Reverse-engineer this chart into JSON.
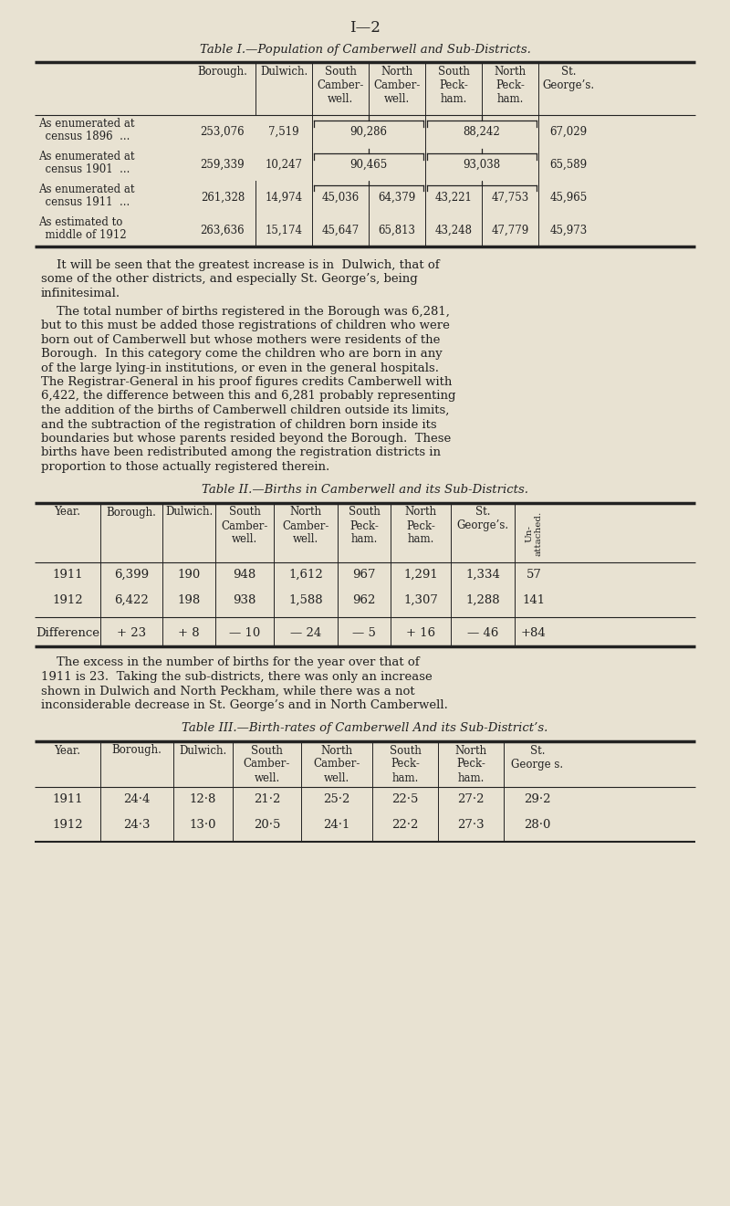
{
  "page_title": "I—2",
  "bg_color": "#e8e2d2",
  "text_color": "#222222",
  "table1_title": "Table I.—Population of Camberwell and Sub-Districts.",
  "table1_col_widths": [
    170,
    72,
    62,
    62,
    62,
    62,
    62,
    66
  ],
  "table1_headers": [
    "",
    "Borough.",
    "Dulwich.",
    "South\nCamber-\nwell.",
    "North\nCamber-\nwell.",
    "South\nPeck-\nham.",
    "North\nPeck-\nham.",
    "St.\nGeorge’s."
  ],
  "table1_rows": [
    [
      "As enumerated at\n  census 1896  ...",
      "253,076",
      "7,519",
      "90,286",
      "",
      "88,242",
      "",
      "67,029"
    ],
    [
      "As enumerated at\n  census 1901  ...",
      "259,339",
      "10,247",
      "90,465",
      "",
      "93,038",
      "",
      "65,589"
    ],
    [
      "As enumerated at\n  census 1911  ...",
      "261,328",
      "14,974",
      "45,036",
      "64,379",
      "43,221",
      "47,753",
      "45,965"
    ],
    [
      "As estimated to\n  middle of 1912",
      "263,636",
      "15,174",
      "45,647",
      "65,813",
      "43,248",
      "47,779",
      "45,973"
    ]
  ],
  "paragraph1": "    It will be seen that the greatest increase is in  Dulwich, that of\nsome of the other districts, and especially St. George’s, being\ninfinitesimal.",
  "paragraph2": "    The total number of births registered in the Borough was 6,281,\nbut to this must be added those registrations of children who were\nborn out of Camberwell but whose mothers were residents of the\nBorough.  In this category come the children who are born in any\nof the large lying-in institutions, or even in the general hospitals.\nThe Registrar-General in his proof figures credits Camberwell with\n6,422, the difference between this and 6,281 probably representing\nthe addition of the births of Camberwell children outside its limits,\nand the subtraction of the registration of children born inside its\nboundaries but whose parents resided beyond the Borough.  These\nbirths have been redistributed among the registration districts in\nproportion to those actually registered therein.",
  "table2_title": "Table II.—Births in Camberwell and its Sub-Districts.",
  "table2_col_widths": [
    72,
    68,
    58,
    64,
    70,
    58,
    66,
    70,
    42
  ],
  "table2_headers": [
    "Year.",
    "Borough.",
    "Dulwich.",
    "South\nCamber-\nwell.",
    "North\nCamber-\nwell.",
    "South\nPeck-\nham.",
    "North\nPeck-\nham.",
    "St.\nGeorge’s.",
    "Un-\nattached."
  ],
  "table2_rows": [
    [
      "1911",
      "6,399",
      "190",
      "948",
      "1,612",
      "967",
      "1,291",
      "1,334",
      "57"
    ],
    [
      "1912",
      "6,422",
      "198",
      "938",
      "1,588",
      "962",
      "1,307",
      "1,288",
      "141"
    ],
    [
      "Difference",
      "+ 23",
      "+ 8",
      "— 10",
      "— 24",
      "— 5",
      "+ 16",
      "— 46",
      "+84"
    ]
  ],
  "paragraph3": "    The excess in the number of births for the year over that of\n1911 is 23.  Taking the sub-districts, there was only an increase\nshown in Dulwich and North Peckham, while there was a not\ninconsiderable decrease in St. George’s and in North Camberwell.",
  "table3_title": "Table III.—Birth-rates of Camberwell And its Sub-District’s.",
  "table3_col_widths": [
    72,
    80,
    65,
    75,
    78,
    72,
    72,
    74
  ],
  "table3_headers": [
    "Year.",
    "Borough.",
    "Dulwich.",
    "South\nCamber-\nwell.",
    "North\nCamber-\nwell.",
    "South\nPeck-\nham.",
    "North\nPeck-\nham.",
    "St.\nGeorge s."
  ],
  "table3_rows": [
    [
      "1911",
      "24·4",
      "12·8",
      "21·2",
      "25·2",
      "22·5",
      "27·2",
      "29·2"
    ],
    [
      "1912",
      "24·3",
      "13·0",
      "20·5",
      "24·1",
      "22·2",
      "27·3",
      "28·0"
    ]
  ]
}
